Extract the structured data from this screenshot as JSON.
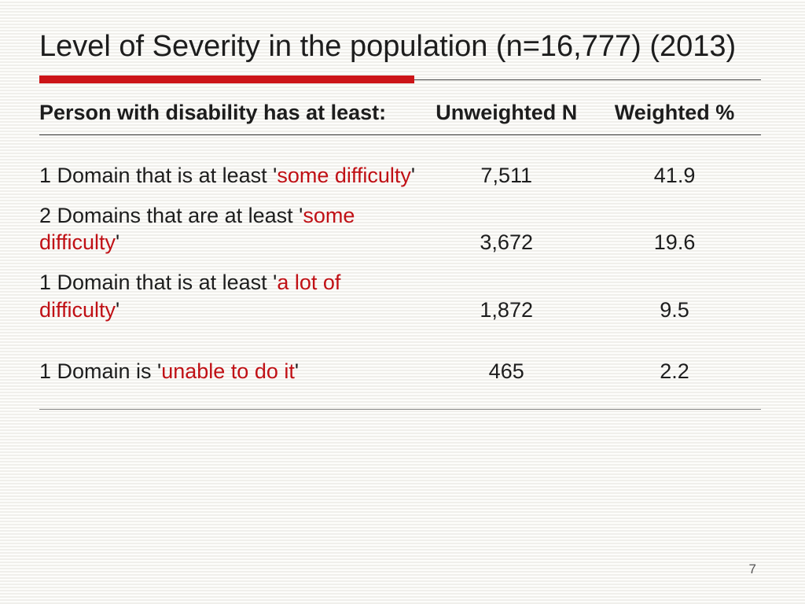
{
  "title": "Level of Severity in the population (n=16,777) (2013)",
  "accent_color": "#cc1418",
  "highlight_text_color": "#c01015",
  "red_rule_width_pct": 52,
  "columns": {
    "c1": "Person with disability has at least:",
    "c2": "Unweighted N",
    "c3": "Weighted %"
  },
  "rows": [
    {
      "pre": "1 Domain that is at least '",
      "hl": "some difficulty",
      "post": "'",
      "n": "7,511",
      "pct": "41.9",
      "cls": "spacer"
    },
    {
      "pre": "2 Domains that are at least '",
      "hl": "some difficulty",
      "post": "'",
      "n": "3,672",
      "pct": "19.6",
      "cls": ""
    },
    {
      "pre": "1 Domain that is at least '",
      "hl": "a lot of difficulty",
      "post": "'",
      "n": "1,872",
      "pct": "9.5",
      "cls": ""
    },
    {
      "pre": "1 Domain is '",
      "hl": "unable to do it",
      "post": "'",
      "n": "465",
      "pct": "2.2",
      "cls": "spacer2"
    }
  ],
  "page_number": "7"
}
